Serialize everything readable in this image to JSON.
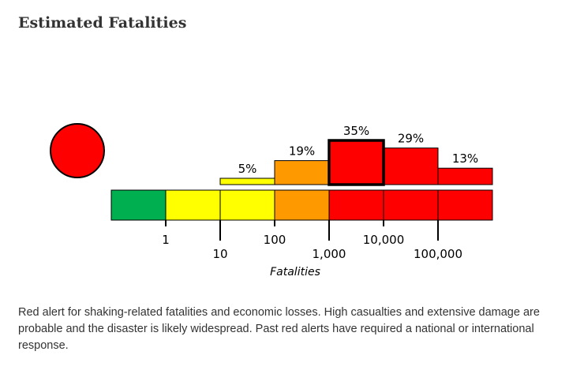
{
  "page": {
    "title": "Estimated Fatalities",
    "description": "Red alert for shaking-related fatalities and economic losses. High casualties and extensive damage are probable and the disaster is likely widespread. Past red alerts have required a national or international response."
  },
  "chart_data": {
    "type": "bar",
    "xlabel": "Fatalities",
    "alert_level": "red",
    "alert_color": "#ff0000",
    "categories": [
      "0",
      "1-10",
      "10-100",
      "100-1,000",
      "1,000-10,000",
      "10,000-100,000",
      "100,000+"
    ],
    "values": [
      0,
      0,
      5,
      19,
      35,
      29,
      13
    ],
    "value_labels": [
      "",
      "",
      "5%",
      "19%",
      "35%",
      "29%",
      "13%"
    ],
    "bar_colors": [
      "#00b050",
      "#ffff00",
      "#ffff00",
      "#ff9900",
      "#ff0000",
      "#ff0000",
      "#ff0000"
    ],
    "scale_colors": [
      "#00b050",
      "#ffff00",
      "#ffff00",
      "#ff9900",
      "#ff0000",
      "#ff0000",
      "#ff0000"
    ],
    "highlighted_index": 4,
    "tick_labels": [
      "1",
      "10",
      "100",
      "1,000",
      "10,000",
      "100,000"
    ],
    "unit": "percent probability"
  }
}
